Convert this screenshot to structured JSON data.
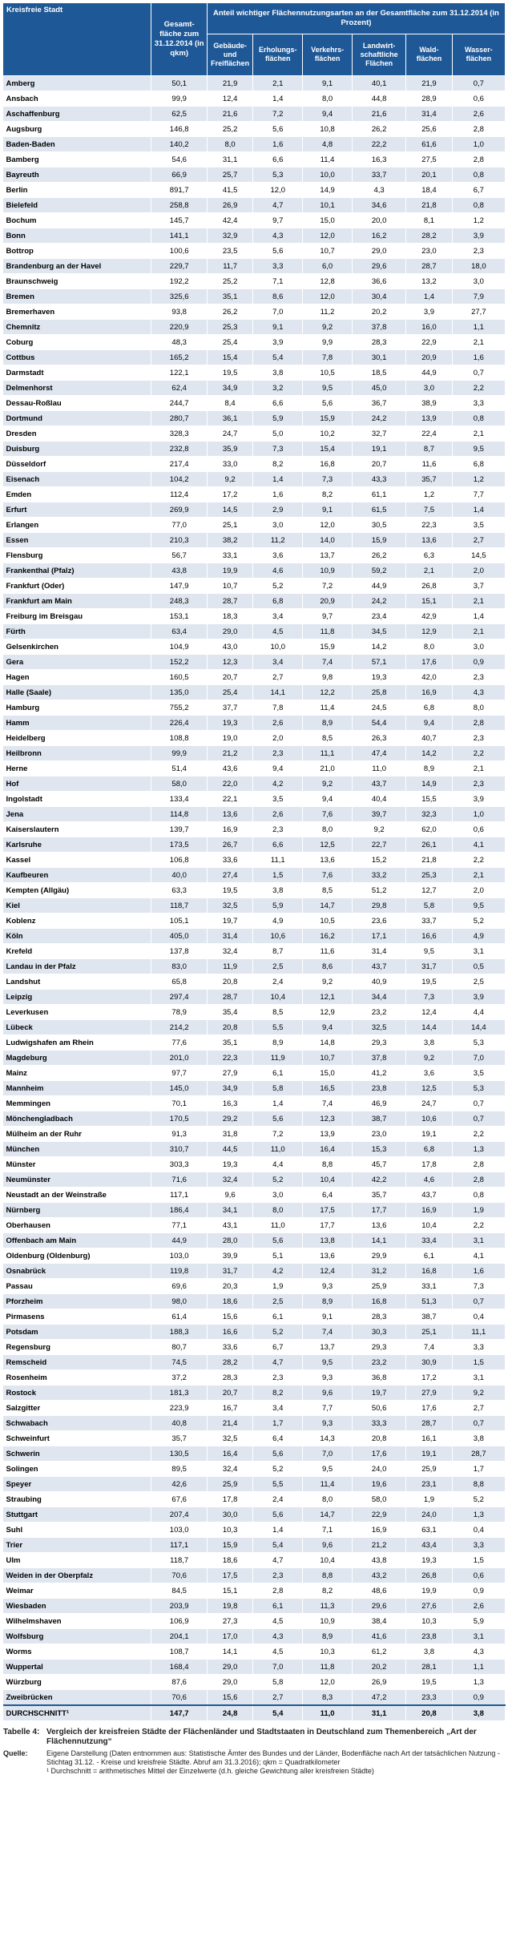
{
  "table": {
    "header": {
      "city": "Kreisfreie Stadt",
      "total_area": "Gesamt-fläche zum 31.12.2014 (in qkm)",
      "group": "Anteil wichtiger Flächennutzungsarten an der Gesamtfläche zum 31.12.2014 (in Prozent)",
      "sub": [
        "Gebäude- und Freiflächen",
        "Erholungs-flächen",
        "Verkehrs-flächen",
        "Landwirt-schaftliche Flächen",
        "Wald-flächen",
        "Wasser-flächen"
      ]
    },
    "rows": [
      [
        "Amberg",
        "50,1",
        "21,9",
        "2,1",
        "9,1",
        "40,1",
        "21,9",
        "0,7"
      ],
      [
        "Ansbach",
        "99,9",
        "12,4",
        "1,4",
        "8,0",
        "44,8",
        "28,9",
        "0,6"
      ],
      [
        "Aschaffenburg",
        "62,5",
        "21,6",
        "7,2",
        "9,4",
        "21,6",
        "31,4",
        "2,6"
      ],
      [
        "Augsburg",
        "146,8",
        "25,2",
        "5,6",
        "10,8",
        "26,2",
        "25,6",
        "2,8"
      ],
      [
        "Baden-Baden",
        "140,2",
        "8,0",
        "1,6",
        "4,8",
        "22,2",
        "61,6",
        "1,0"
      ],
      [
        "Bamberg",
        "54,6",
        "31,1",
        "6,6",
        "11,4",
        "16,3",
        "27,5",
        "2,8"
      ],
      [
        "Bayreuth",
        "66,9",
        "25,7",
        "5,3",
        "10,0",
        "33,7",
        "20,1",
        "0,8"
      ],
      [
        "Berlin",
        "891,7",
        "41,5",
        "12,0",
        "14,9",
        "4,3",
        "18,4",
        "6,7"
      ],
      [
        "Bielefeld",
        "258,8",
        "26,9",
        "4,7",
        "10,1",
        "34,6",
        "21,8",
        "0,8"
      ],
      [
        "Bochum",
        "145,7",
        "42,4",
        "9,7",
        "15,0",
        "20,0",
        "8,1",
        "1,2"
      ],
      [
        "Bonn",
        "141,1",
        "32,9",
        "4,3",
        "12,0",
        "16,2",
        "28,2",
        "3,9"
      ],
      [
        "Bottrop",
        "100,6",
        "23,5",
        "5,6",
        "10,7",
        "29,0",
        "23,0",
        "2,3"
      ],
      [
        "Brandenburg an der Havel",
        "229,7",
        "11,7",
        "3,3",
        "6,0",
        "29,6",
        "28,7",
        "18,0"
      ],
      [
        "Braunschweig",
        "192,2",
        "25,2",
        "7,1",
        "12,8",
        "36,6",
        "13,2",
        "3,0"
      ],
      [
        "Bremen",
        "325,6",
        "35,1",
        "8,6",
        "12,0",
        "30,4",
        "1,4",
        "7,9"
      ],
      [
        "Bremerhaven",
        "93,8",
        "26,2",
        "7,0",
        "11,2",
        "20,2",
        "3,9",
        "27,7"
      ],
      [
        "Chemnitz",
        "220,9",
        "25,3",
        "9,1",
        "9,2",
        "37,8",
        "16,0",
        "1,1"
      ],
      [
        "Coburg",
        "48,3",
        "25,4",
        "3,9",
        "9,9",
        "28,3",
        "22,9",
        "2,1"
      ],
      [
        "Cottbus",
        "165,2",
        "15,4",
        "5,4",
        "7,8",
        "30,1",
        "20,9",
        "1,6"
      ],
      [
        "Darmstadt",
        "122,1",
        "19,5",
        "3,8",
        "10,5",
        "18,5",
        "44,9",
        "0,7"
      ],
      [
        "Delmenhorst",
        "62,4",
        "34,9",
        "3,2",
        "9,5",
        "45,0",
        "3,0",
        "2,2"
      ],
      [
        "Dessau-Roßlau",
        "244,7",
        "8,4",
        "6,6",
        "5,6",
        "36,7",
        "38,9",
        "3,3"
      ],
      [
        "Dortmund",
        "280,7",
        "36,1",
        "5,9",
        "15,9",
        "24,2",
        "13,9",
        "0,8"
      ],
      [
        "Dresden",
        "328,3",
        "24,7",
        "5,0",
        "10,2",
        "32,7",
        "22,4",
        "2,1"
      ],
      [
        "Duisburg",
        "232,8",
        "35,9",
        "7,3",
        "15,4",
        "19,1",
        "8,7",
        "9,5"
      ],
      [
        "Düsseldorf",
        "217,4",
        "33,0",
        "8,2",
        "16,8",
        "20,7",
        "11,6",
        "6,8"
      ],
      [
        "Eisenach",
        "104,2",
        "9,2",
        "1,4",
        "7,3",
        "43,3",
        "35,7",
        "1,2"
      ],
      [
        "Emden",
        "112,4",
        "17,2",
        "1,6",
        "8,2",
        "61,1",
        "1,2",
        "7,7"
      ],
      [
        "Erfurt",
        "269,9",
        "14,5",
        "2,9",
        "9,1",
        "61,5",
        "7,5",
        "1,4"
      ],
      [
        "Erlangen",
        "77,0",
        "25,1",
        "3,0",
        "12,0",
        "30,5",
        "22,3",
        "3,5"
      ],
      [
        "Essen",
        "210,3",
        "38,2",
        "11,2",
        "14,0",
        "15,9",
        "13,6",
        "2,7"
      ],
      [
        "Flensburg",
        "56,7",
        "33,1",
        "3,6",
        "13,7",
        "26,2",
        "6,3",
        "14,5"
      ],
      [
        "Frankenthal (Pfalz)",
        "43,8",
        "19,9",
        "4,6",
        "10,9",
        "59,2",
        "2,1",
        "2,0"
      ],
      [
        "Frankfurt (Oder)",
        "147,9",
        "10,7",
        "5,2",
        "7,2",
        "44,9",
        "26,8",
        "3,7"
      ],
      [
        "Frankfurt am Main",
        "248,3",
        "28,7",
        "6,8",
        "20,9",
        "24,2",
        "15,1",
        "2,1"
      ],
      [
        "Freiburg im Breisgau",
        "153,1",
        "18,3",
        "3,4",
        "9,7",
        "23,4",
        "42,9",
        "1,4"
      ],
      [
        "Fürth",
        "63,4",
        "29,0",
        "4,5",
        "11,8",
        "34,5",
        "12,9",
        "2,1"
      ],
      [
        "Gelsenkirchen",
        "104,9",
        "43,0",
        "10,0",
        "15,9",
        "14,2",
        "8,0",
        "3,0"
      ],
      [
        "Gera",
        "152,2",
        "12,3",
        "3,4",
        "7,4",
        "57,1",
        "17,6",
        "0,9"
      ],
      [
        "Hagen",
        "160,5",
        "20,7",
        "2,7",
        "9,8",
        "19,3",
        "42,0",
        "2,3"
      ],
      [
        "Halle (Saale)",
        "135,0",
        "25,4",
        "14,1",
        "12,2",
        "25,8",
        "16,9",
        "4,3"
      ],
      [
        "Hamburg",
        "755,2",
        "37,7",
        "7,8",
        "11,4",
        "24,5",
        "6,8",
        "8,0"
      ],
      [
        "Hamm",
        "226,4",
        "19,3",
        "2,6",
        "8,9",
        "54,4",
        "9,4",
        "2,8"
      ],
      [
        "Heidelberg",
        "108,8",
        "19,0",
        "2,0",
        "8,5",
        "26,3",
        "40,7",
        "2,3"
      ],
      [
        "Heilbronn",
        "99,9",
        "21,2",
        "2,3",
        "11,1",
        "47,4",
        "14,2",
        "2,2"
      ],
      [
        "Herne",
        "51,4",
        "43,6",
        "9,4",
        "21,0",
        "11,0",
        "8,9",
        "2,1"
      ],
      [
        "Hof",
        "58,0",
        "22,0",
        "4,2",
        "9,2",
        "43,7",
        "14,9",
        "2,3"
      ],
      [
        "Ingolstadt",
        "133,4",
        "22,1",
        "3,5",
        "9,4",
        "40,4",
        "15,5",
        "3,9"
      ],
      [
        "Jena",
        "114,8",
        "13,6",
        "2,6",
        "7,6",
        "39,7",
        "32,3",
        "1,0"
      ],
      [
        "Kaiserslautern",
        "139,7",
        "16,9",
        "2,3",
        "8,0",
        "9,2",
        "62,0",
        "0,6"
      ],
      [
        "Karlsruhe",
        "173,5",
        "26,7",
        "6,6",
        "12,5",
        "22,7",
        "26,1",
        "4,1"
      ],
      [
        "Kassel",
        "106,8",
        "33,6",
        "11,1",
        "13,6",
        "15,2",
        "21,8",
        "2,2"
      ],
      [
        "Kaufbeuren",
        "40,0",
        "27,4",
        "1,5",
        "7,6",
        "33,2",
        "25,3",
        "2,1"
      ],
      [
        "Kempten (Allgäu)",
        "63,3",
        "19,5",
        "3,8",
        "8,5",
        "51,2",
        "12,7",
        "2,0"
      ],
      [
        "Kiel",
        "118,7",
        "32,5",
        "5,9",
        "14,7",
        "29,8",
        "5,8",
        "9,5"
      ],
      [
        "Koblenz",
        "105,1",
        "19,7",
        "4,9",
        "10,5",
        "23,6",
        "33,7",
        "5,2"
      ],
      [
        "Köln",
        "405,0",
        "31,4",
        "10,6",
        "16,2",
        "17,1",
        "16,6",
        "4,9"
      ],
      [
        "Krefeld",
        "137,8",
        "32,4",
        "8,7",
        "11,6",
        "31,4",
        "9,5",
        "3,1"
      ],
      [
        "Landau in der Pfalz",
        "83,0",
        "11,9",
        "2,5",
        "8,6",
        "43,7",
        "31,7",
        "0,5"
      ],
      [
        "Landshut",
        "65,8",
        "20,8",
        "2,4",
        "9,2",
        "40,9",
        "19,5",
        "2,5"
      ],
      [
        "Leipzig",
        "297,4",
        "28,7",
        "10,4",
        "12,1",
        "34,4",
        "7,3",
        "3,9"
      ],
      [
        "Leverkusen",
        "78,9",
        "35,4",
        "8,5",
        "12,9",
        "23,2",
        "12,4",
        "4,4"
      ],
      [
        "Lübeck",
        "214,2",
        "20,8",
        "5,5",
        "9,4",
        "32,5",
        "14,4",
        "14,4"
      ],
      [
        "Ludwigshafen am Rhein",
        "77,6",
        "35,1",
        "8,9",
        "14,8",
        "29,3",
        "3,8",
        "5,3"
      ],
      [
        "Magdeburg",
        "201,0",
        "22,3",
        "11,9",
        "10,7",
        "37,8",
        "9,2",
        "7,0"
      ],
      [
        "Mainz",
        "97,7",
        "27,9",
        "6,1",
        "15,0",
        "41,2",
        "3,6",
        "3,5"
      ],
      [
        "Mannheim",
        "145,0",
        "34,9",
        "5,8",
        "16,5",
        "23,8",
        "12,5",
        "5,3"
      ],
      [
        "Memmingen",
        "70,1",
        "16,3",
        "1,4",
        "7,4",
        "46,9",
        "24,7",
        "0,7"
      ],
      [
        "Mönchengladbach",
        "170,5",
        "29,2",
        "5,6",
        "12,3",
        "38,7",
        "10,6",
        "0,7"
      ],
      [
        "Mülheim an der Ruhr",
        "91,3",
        "31,8",
        "7,2",
        "13,9",
        "23,0",
        "19,1",
        "2,2"
      ],
      [
        "München",
        "310,7",
        "44,5",
        "11,0",
        "16,4",
        "15,3",
        "6,8",
        "1,3"
      ],
      [
        "Münster",
        "303,3",
        "19,3",
        "4,4",
        "8,8",
        "45,7",
        "17,8",
        "2,8"
      ],
      [
        "Neumünster",
        "71,6",
        "32,4",
        "5,2",
        "10,4",
        "42,2",
        "4,6",
        "2,8"
      ],
      [
        "Neustadt an der Weinstraße",
        "117,1",
        "9,6",
        "3,0",
        "6,4",
        "35,7",
        "43,7",
        "0,8"
      ],
      [
        "Nürnberg",
        "186,4",
        "34,1",
        "8,0",
        "17,5",
        "17,7",
        "16,9",
        "1,9"
      ],
      [
        "Oberhausen",
        "77,1",
        "43,1",
        "11,0",
        "17,7",
        "13,6",
        "10,4",
        "2,2"
      ],
      [
        "Offenbach am Main",
        "44,9",
        "28,0",
        "5,6",
        "13,8",
        "14,1",
        "33,4",
        "3,1"
      ],
      [
        "Oldenburg (Oldenburg)",
        "103,0",
        "39,9",
        "5,1",
        "13,6",
        "29,9",
        "6,1",
        "4,1"
      ],
      [
        "Osnabrück",
        "119,8",
        "31,7",
        "4,2",
        "12,4",
        "31,2",
        "16,8",
        "1,6"
      ],
      [
        "Passau",
        "69,6",
        "20,3",
        "1,9",
        "9,3",
        "25,9",
        "33,1",
        "7,3"
      ],
      [
        "Pforzheim",
        "98,0",
        "18,6",
        "2,5",
        "8,9",
        "16,8",
        "51,3",
        "0,7"
      ],
      [
        "Pirmasens",
        "61,4",
        "15,6",
        "6,1",
        "9,1",
        "28,3",
        "38,7",
        "0,4"
      ],
      [
        "Potsdam",
        "188,3",
        "16,6",
        "5,2",
        "7,4",
        "30,3",
        "25,1",
        "11,1"
      ],
      [
        "Regensburg",
        "80,7",
        "33,6",
        "6,7",
        "13,7",
        "29,3",
        "7,4",
        "3,3"
      ],
      [
        "Remscheid",
        "74,5",
        "28,2",
        "4,7",
        "9,5",
        "23,2",
        "30,9",
        "1,5"
      ],
      [
        "Rosenheim",
        "37,2",
        "28,3",
        "2,3",
        "9,3",
        "36,8",
        "17,2",
        "3,1"
      ],
      [
        "Rostock",
        "181,3",
        "20,7",
        "8,2",
        "9,6",
        "19,7",
        "27,9",
        "9,2"
      ],
      [
        "Salzgitter",
        "223,9",
        "16,7",
        "3,4",
        "7,7",
        "50,6",
        "17,6",
        "2,7"
      ],
      [
        "Schwabach",
        "40,8",
        "21,4",
        "1,7",
        "9,3",
        "33,3",
        "28,7",
        "0,7"
      ],
      [
        "Schweinfurt",
        "35,7",
        "32,5",
        "6,4",
        "14,3",
        "20,8",
        "16,1",
        "3,8"
      ],
      [
        "Schwerin",
        "130,5",
        "16,4",
        "5,6",
        "7,0",
        "17,6",
        "19,1",
        "28,7"
      ],
      [
        "Solingen",
        "89,5",
        "32,4",
        "5,2",
        "9,5",
        "24,0",
        "25,9",
        "1,7"
      ],
      [
        "Speyer",
        "42,6",
        "25,9",
        "5,5",
        "11,4",
        "19,6",
        "23,1",
        "8,8"
      ],
      [
        "Straubing",
        "67,6",
        "17,8",
        "2,4",
        "8,0",
        "58,0",
        "1,9",
        "5,2"
      ],
      [
        "Stuttgart",
        "207,4",
        "30,0",
        "5,6",
        "14,7",
        "22,9",
        "24,0",
        "1,3"
      ],
      [
        "Suhl",
        "103,0",
        "10,3",
        "1,4",
        "7,1",
        "16,9",
        "63,1",
        "0,4"
      ],
      [
        "Trier",
        "117,1",
        "15,9",
        "5,4",
        "9,6",
        "21,2",
        "43,4",
        "3,3"
      ],
      [
        "Ulm",
        "118,7",
        "18,6",
        "4,7",
        "10,4",
        "43,8",
        "19,3",
        "1,5"
      ],
      [
        "Weiden in der Oberpfalz",
        "70,6",
        "17,5",
        "2,3",
        "8,8",
        "43,2",
        "26,8",
        "0,6"
      ],
      [
        "Weimar",
        "84,5",
        "15,1",
        "2,8",
        "8,2",
        "48,6",
        "19,9",
        "0,9"
      ],
      [
        "Wiesbaden",
        "203,9",
        "19,8",
        "6,1",
        "11,3",
        "29,6",
        "27,6",
        "2,6"
      ],
      [
        "Wilhelmshaven",
        "106,9",
        "27,3",
        "4,5",
        "10,9",
        "38,4",
        "10,3",
        "5,9"
      ],
      [
        "Wolfsburg",
        "204,1",
        "17,0",
        "4,3",
        "8,9",
        "41,6",
        "23,8",
        "3,1"
      ],
      [
        "Worms",
        "108,7",
        "14,1",
        "4,5",
        "10,3",
        "61,2",
        "3,8",
        "4,3"
      ],
      [
        "Wuppertal",
        "168,4",
        "29,0",
        "7,0",
        "11,8",
        "20,2",
        "28,1",
        "1,1"
      ],
      [
        "Würzburg",
        "87,6",
        "29,0",
        "5,8",
        "12,0",
        "26,9",
        "19,5",
        "1,3"
      ],
      [
        "Zweibrücken",
        "70,6",
        "15,6",
        "2,7",
        "8,3",
        "47,2",
        "23,3",
        "0,9"
      ]
    ],
    "average": [
      "DURCHSCHNITT¹",
      "147,7",
      "24,8",
      "5,4",
      "11,0",
      "31,1",
      "20,8",
      "3,8"
    ]
  },
  "notes": {
    "table_label": "Tabelle 4:",
    "caption": "Vergleich der kreisfreien Städte der Flächenländer und Stadtstaaten in Deutschland zum Themenbereich „Art der Flächennutzung“",
    "source_label": "Quelle:",
    "source": "Eigene Darstellung (Daten entnommen aus: Statistische Ämter des Bundes und der Länder, Bodenfläche nach Art der tatsächlichen Nutzung - Stichtag 31.12. - Kreise und kreisfreie Städte. Abruf am 31.3.2016); qkm = Quadratkilometer",
    "footnote": "¹ Durchschnitt = arithmetisches Mittel der Einzelwerte (d.h. gleiche Gewichtung aller kreisfreien Städte)"
  }
}
